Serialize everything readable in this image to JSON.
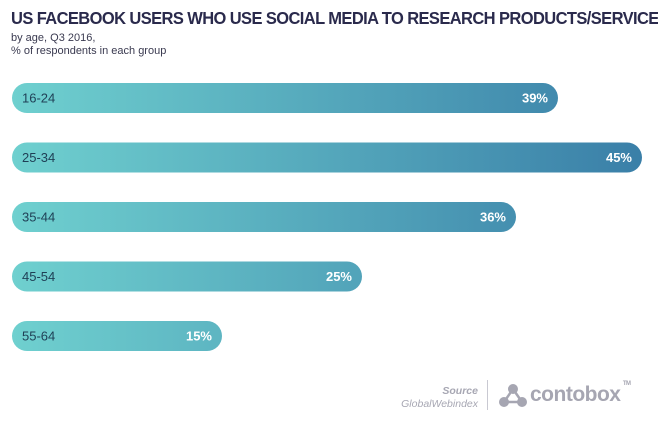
{
  "header": {
    "title": "US FACEBOOK USERS WHO USE SOCIAL MEDIA TO RESEARCH PRODUCTS/SERVICES",
    "subtitle_line1": "by age, Q3 2016,",
    "subtitle_line2": "% of respondents in each group"
  },
  "chart_data": {
    "type": "bar",
    "orientation": "horizontal",
    "title": "US FACEBOOK USERS WHO USE SOCIAL MEDIA TO RESEARCH PRODUCTS/SERVICES",
    "subtitle": "by age, Q3 2016, % of respondents in each group",
    "categories": [
      "16-24",
      "25-34",
      "35-44",
      "45-54",
      "55-64"
    ],
    "values": [
      39,
      45,
      36,
      25,
      15
    ],
    "value_labels": [
      "39%",
      "45%",
      "36%",
      "25%",
      "15%"
    ],
    "unit": "%",
    "xlim": [
      0,
      45
    ],
    "grid": false,
    "legend": "none",
    "colors": {
      "bar_start": "#6fd0cf",
      "bar_end": "#3a7fa8",
      "category_text": "#1f3f55",
      "value_text": "#ffffff"
    }
  },
  "footer": {
    "source_label": "Source",
    "source_name": "GlobalWebindex",
    "brand": "contobox",
    "brand_tm": "TM",
    "brand_icon": "contobox-molecule-icon"
  }
}
